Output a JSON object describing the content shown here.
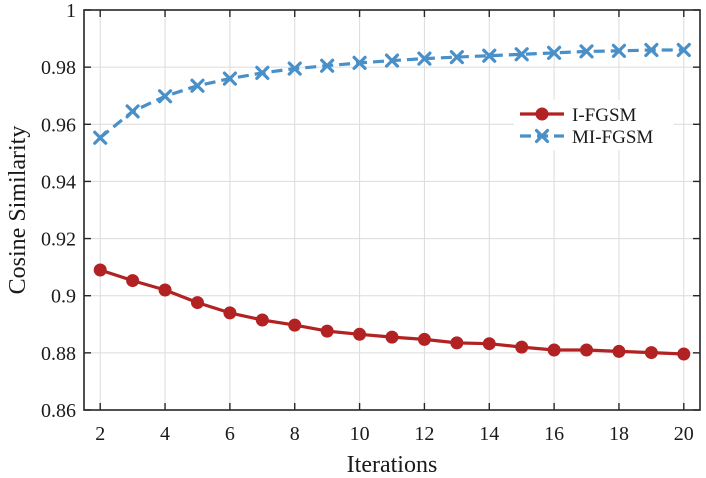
{
  "chart_data": {
    "type": "line",
    "xlabel": "Iterations",
    "ylabel": "Cosine Similarity",
    "xlim": [
      1.5,
      20.5
    ],
    "ylim": [
      0.86,
      1.0
    ],
    "xticks": [
      2,
      4,
      6,
      8,
      10,
      12,
      14,
      16,
      18,
      20
    ],
    "xtick_labels": [
      "2",
      "4",
      "6",
      "8",
      "10",
      "12",
      "14",
      "16",
      "18",
      "20"
    ],
    "yticks": [
      0.86,
      0.88,
      0.9,
      0.92,
      0.94,
      0.96,
      0.98,
      1.0
    ],
    "ytick_labels": [
      "0.86",
      "0.88",
      "0.9",
      "0.92",
      "0.94",
      "0.96",
      "0.98",
      "1"
    ],
    "grid": true,
    "legend_position": "right",
    "x": [
      2,
      3,
      4,
      5,
      6,
      7,
      8,
      9,
      10,
      11,
      12,
      13,
      14,
      15,
      16,
      17,
      18,
      19,
      20
    ],
    "series": [
      {
        "name": "I-FGSM",
        "color": "#b22222",
        "marker": "circle",
        "linestyle": "solid",
        "values": [
          0.909,
          0.9053,
          0.902,
          0.8976,
          0.894,
          0.8915,
          0.8897,
          0.8876,
          0.8865,
          0.8855,
          0.8847,
          0.8835,
          0.8832,
          0.882,
          0.881,
          0.881,
          0.8805,
          0.8801,
          0.8796
        ]
      },
      {
        "name": "MI-FGSM",
        "color": "#4a90c8",
        "marker": "x",
        "linestyle": "dashed",
        "values": [
          0.9553,
          0.9645,
          0.9698,
          0.9735,
          0.976,
          0.978,
          0.9795,
          0.9805,
          0.9815,
          0.9823,
          0.983,
          0.9835,
          0.984,
          0.9845,
          0.985,
          0.9855,
          0.9857,
          0.986,
          0.986
        ]
      }
    ]
  }
}
